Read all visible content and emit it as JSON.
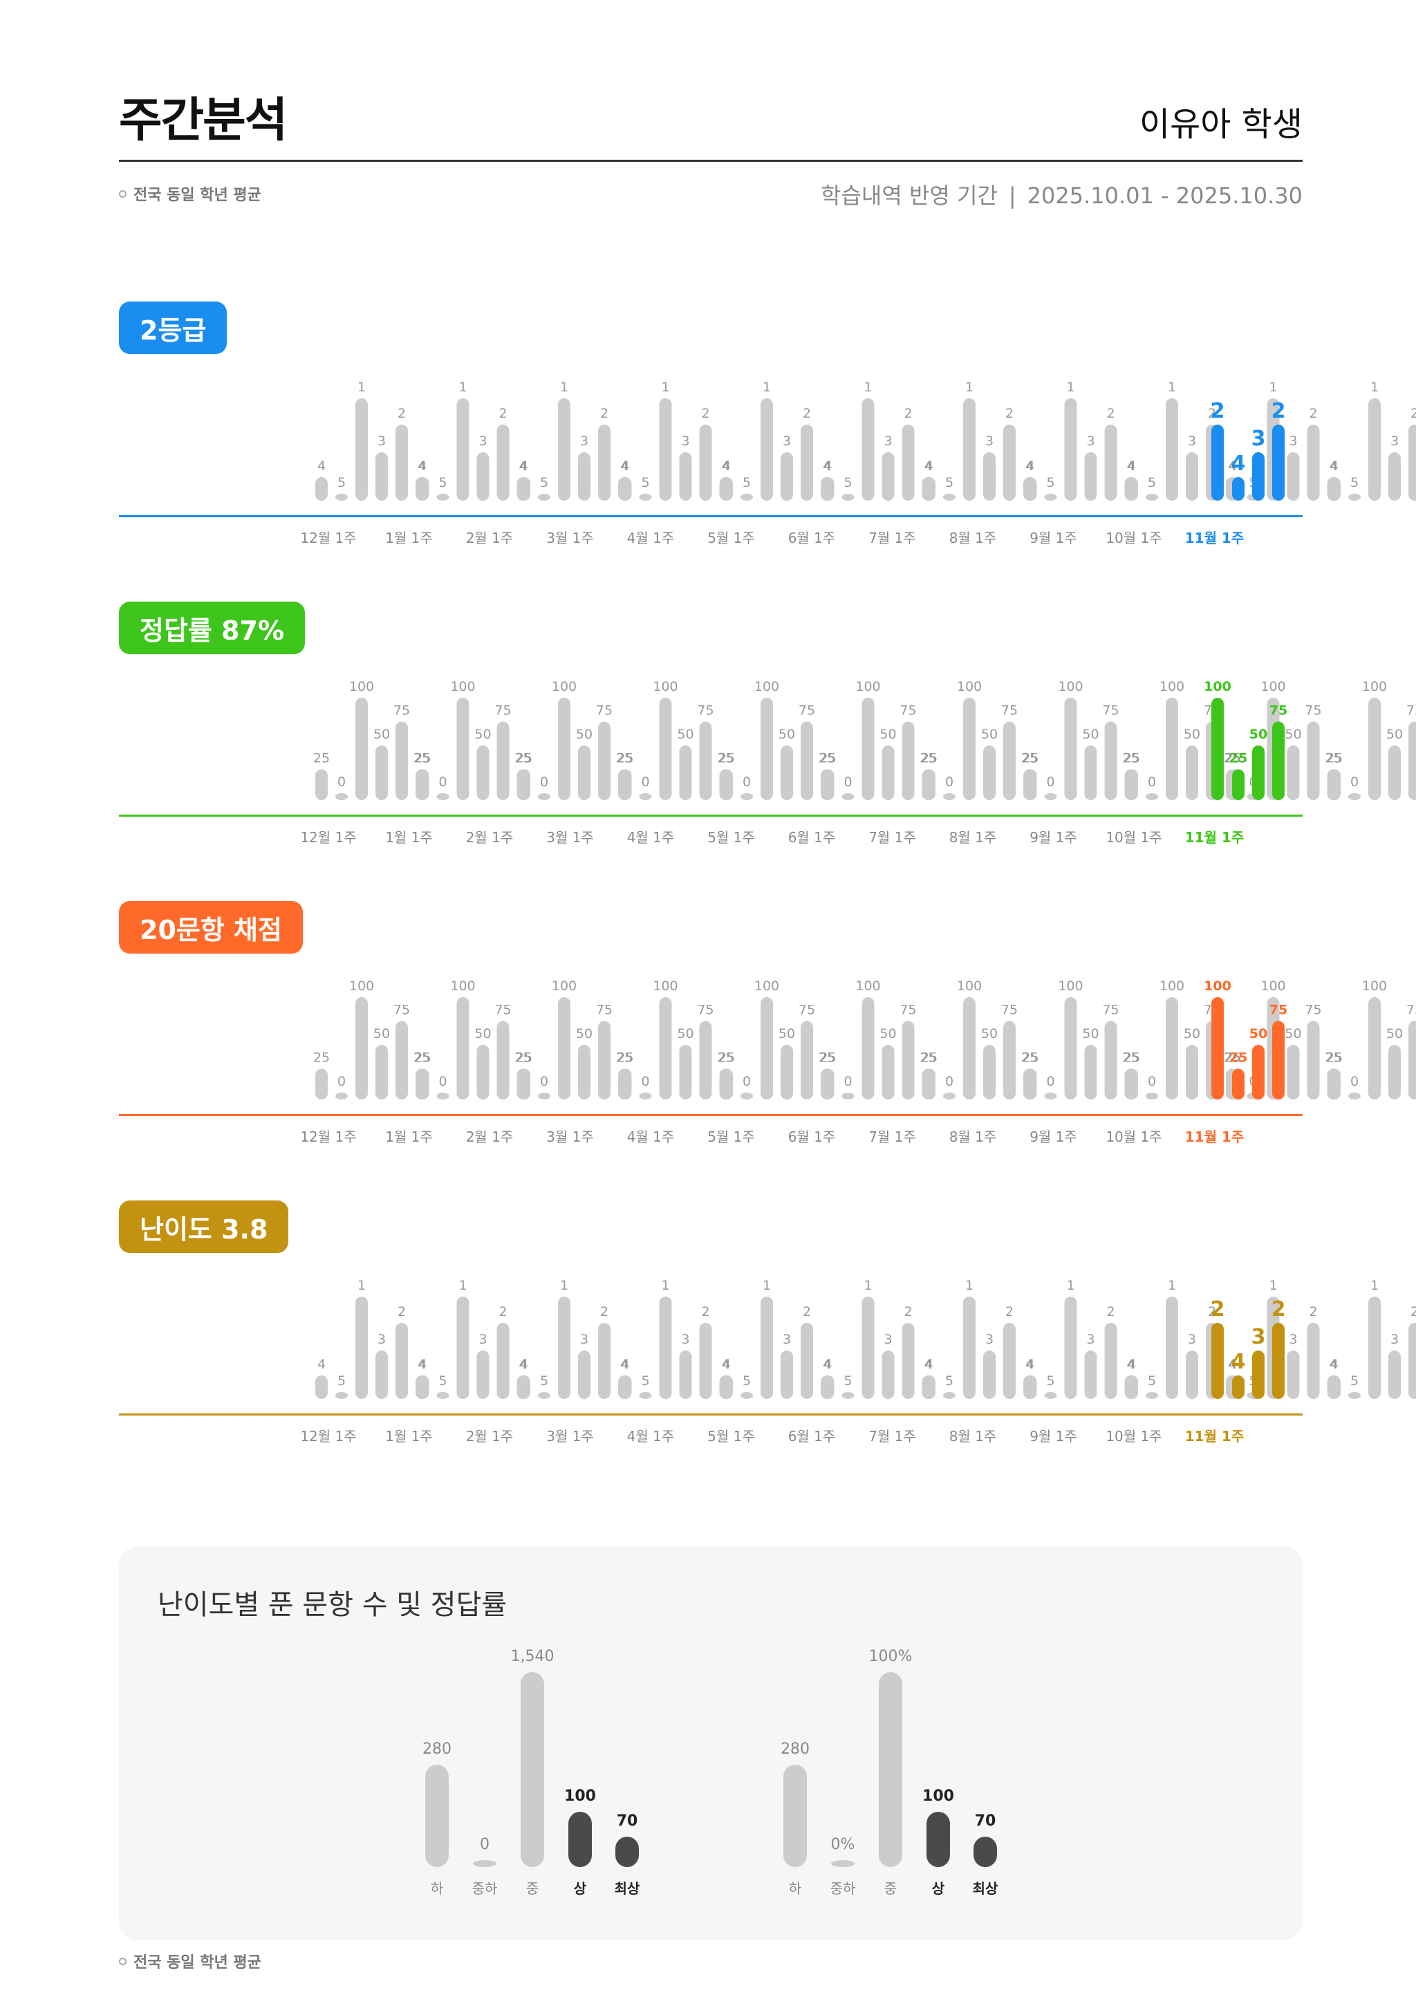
{
  "header": {
    "title": "주간분석",
    "student": "이유아 학생",
    "legend_avg": "전국 동일 학년 평균",
    "period_label": "학습내역 반영 기간",
    "period_sep": "|",
    "period_range": "2025.10.01 - 2025.10.30"
  },
  "colors": {
    "grade": "#1a8ef0",
    "accuracy": "#3ec51b",
    "scoring": "#ff6a2a",
    "difficulty": "#c39211",
    "gray": "#cccccc",
    "dark": "#4a4a4a"
  },
  "chart_data": [
    {
      "type": "bar",
      "badge": "2등급",
      "metric": "grade",
      "categories": [
        "12월 1주",
        "1월 1주",
        "2월 1주",
        "3월 1주",
        "4월 1주",
        "5월 1주",
        "6월 1주",
        "7월 1주",
        "8월 1주",
        "9월 1주",
        "10월 1주",
        "11월 1주"
      ],
      "pattern": [
        "4",
        "5",
        "1",
        "3",
        "2",
        "4"
      ],
      "current": [
        "2",
        "4",
        "3",
        "2"
      ]
    },
    {
      "type": "bar",
      "badge": "정답률 87%",
      "metric": "accuracy",
      "categories": [
        "12월 1주",
        "1월 1주",
        "2월 1주",
        "3월 1주",
        "4월 1주",
        "5월 1주",
        "6월 1주",
        "7월 1주",
        "8월 1주",
        "9월 1주",
        "10월 1주",
        "11월 1주"
      ],
      "pattern": [
        "25",
        "0",
        "100",
        "50",
        "75",
        "25"
      ],
      "current": [
        "100",
        "25",
        "50",
        "75"
      ]
    },
    {
      "type": "bar",
      "badge": "20문항 채점",
      "metric": "scoring",
      "categories": [
        "12월 1주",
        "1월 1주",
        "2월 1주",
        "3월 1주",
        "4월 1주",
        "5월 1주",
        "6월 1주",
        "7월 1주",
        "8월 1주",
        "9월 1주",
        "10월 1주",
        "11월 1주"
      ],
      "pattern": [
        "25",
        "0",
        "100",
        "50",
        "75",
        "25"
      ],
      "current": [
        "100",
        "25",
        "50",
        "75"
      ]
    },
    {
      "type": "bar",
      "badge": "난이도 3.8",
      "metric": "difficulty",
      "categories": [
        "12월 1주",
        "1월 1주",
        "2월 1주",
        "3월 1주",
        "4월 1주",
        "5월 1주",
        "6월 1주",
        "7월 1주",
        "8월 1주",
        "9월 1주",
        "10월 1주",
        "11월 1주"
      ],
      "pattern": [
        "4",
        "5",
        "1",
        "3",
        "2",
        "4"
      ],
      "current": [
        "2",
        "4",
        "3",
        "2"
      ]
    }
  ],
  "bottom": {
    "title": "난이도별 푼 문항 수 및 정답률",
    "legend_avg": "전국 동일 학년 평균",
    "categories": [
      "하",
      "중하",
      "중",
      "상",
      "최상"
    ],
    "count_chart": {
      "type": "bar",
      "values": [
        280,
        0,
        1540,
        100,
        70
      ],
      "labels": [
        "280",
        "0",
        "1,540",
        "100",
        "70"
      ]
    },
    "rate_chart": {
      "type": "bar",
      "values": [
        280,
        0,
        100,
        100,
        70
      ],
      "labels": [
        "280",
        "0%",
        "100%",
        "100",
        "70"
      ]
    }
  }
}
